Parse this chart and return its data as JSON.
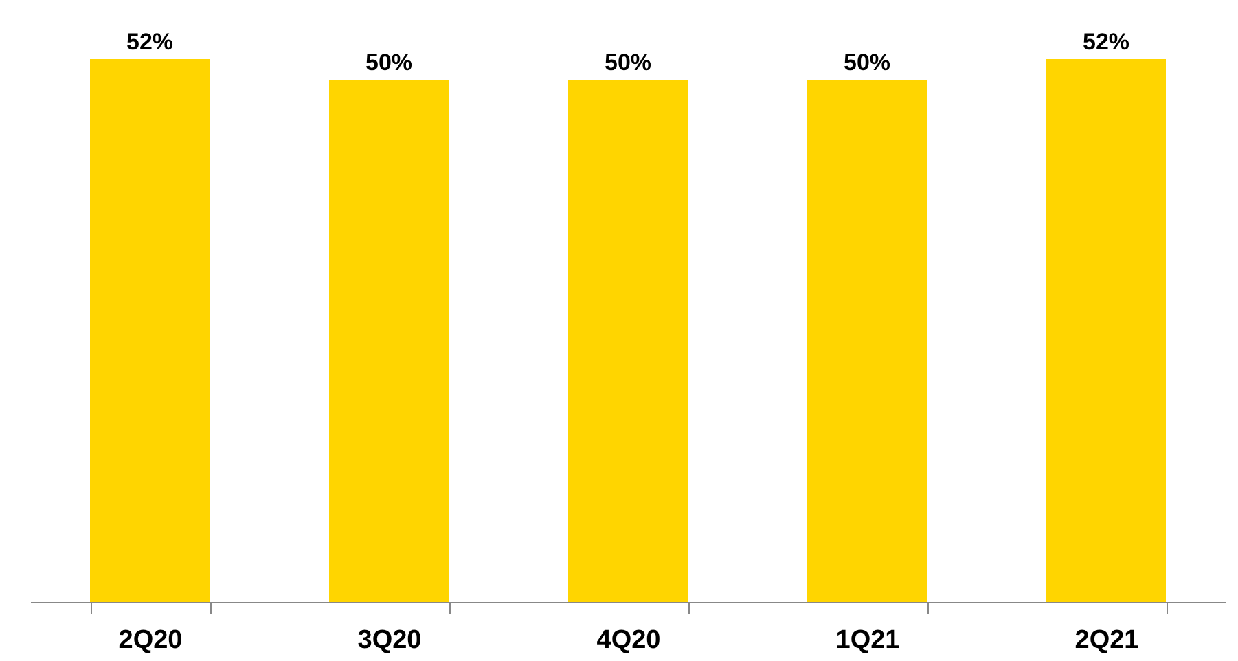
{
  "chart_data": {
    "type": "bar",
    "categories": [
      "2Q20",
      "3Q20",
      "4Q20",
      "1Q21",
      "2Q21"
    ],
    "values": [
      52,
      50,
      50,
      50,
      52
    ],
    "value_labels": [
      "52%",
      "50%",
      "50%",
      "50%",
      "52%"
    ],
    "color": "#ffd500",
    "ylim": [
      0,
      52
    ]
  }
}
